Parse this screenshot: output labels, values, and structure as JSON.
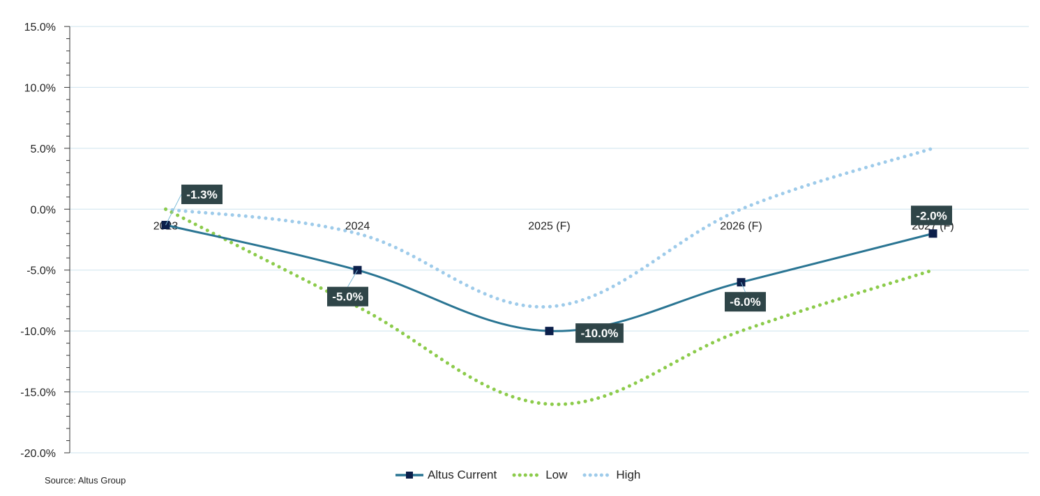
{
  "chart_data": {
    "type": "line",
    "categories": [
      "2023",
      "2024",
      "2025 (F)",
      "2026 (F)",
      "2027 (F)"
    ],
    "series": [
      {
        "name": "Altus Current",
        "values": [
          -1.3,
          -5.0,
          -10.0,
          -6.0,
          -2.0
        ],
        "color": "#2a7593",
        "style": "solid",
        "data_labels": [
          "-1.3%",
          "-5.0%",
          "-10.0%",
          "-6.0%",
          "-2.0%"
        ]
      },
      {
        "name": "Low",
        "values": [
          0.0,
          -8.0,
          -16.0,
          -10.0,
          -5.0
        ],
        "color": "#8ccb4b",
        "style": "dotted"
      },
      {
        "name": "High",
        "values": [
          0.0,
          -2.0,
          -8.0,
          0.0,
          5.0
        ],
        "color": "#9ecbea",
        "style": "dotted"
      }
    ],
    "yticks": [
      "15.0%",
      "10.0%",
      "5.0%",
      "0.0%",
      "-5.0%",
      "-10.0%",
      "-15.0%",
      "-20.0%"
    ],
    "ylim": [
      -20,
      15
    ],
    "grid": true,
    "legend_position": "bottom"
  },
  "source": "Source:  Altus Group",
  "colors": {
    "label_bg": "#2f4548",
    "marker": "#0c1f4a",
    "grid": "#cde3ee",
    "axis": "#333333"
  }
}
